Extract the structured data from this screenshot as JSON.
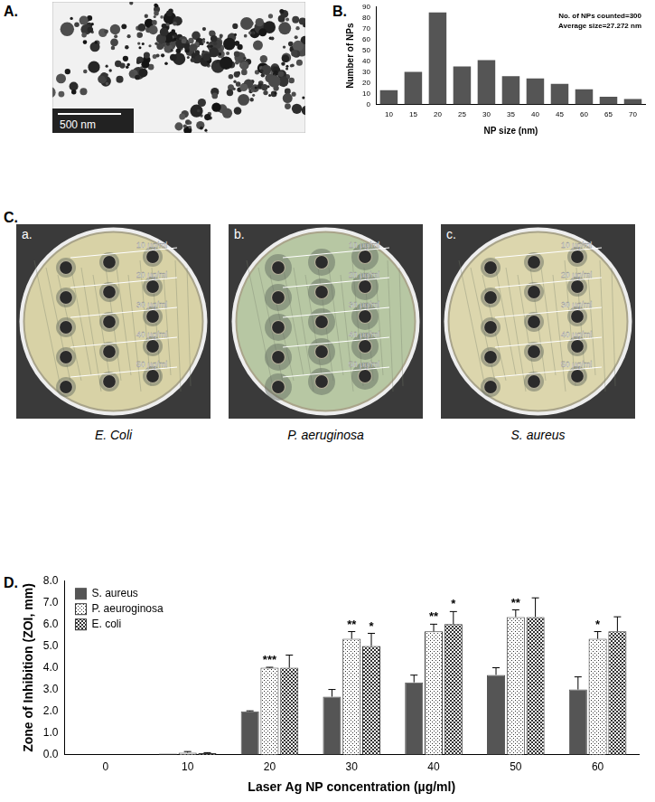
{
  "figure": {
    "panel_labels": [
      "A.",
      "B.",
      "C.",
      "D."
    ]
  },
  "image": {
    "scale_bar": "500 nm"
  },
  "plates": [
    {
      "label": "a.",
      "organism": "E. Coli",
      "concentrations": [
        "10 µg/ml",
        "20 µg/ml",
        "30 µg/ml",
        "40 µg/ml",
        "50 µg/ml"
      ]
    },
    {
      "label": "b.",
      "organism": "P. aeruginosa",
      "concentrations": [
        "10 µg/ml",
        "20 µg/ml",
        "30 µg/ml",
        "40 µg/ml",
        "50 µg/ml"
      ]
    },
    {
      "label": "c.",
      "organism": "S. aureus",
      "concentrations": [
        "10 µg/ml",
        "20 µg/ml",
        "30 µg/ml",
        "40 µg/ml",
        "50 µg/ml"
      ]
    }
  ],
  "chart_data": [
    {
      "type": "bar",
      "categories": [
        "10",
        "15",
        "20",
        "25",
        "30",
        "35",
        "40",
        "45",
        "60",
        "65",
        "70"
      ],
      "values": [
        13,
        30,
        85,
        35,
        41,
        26,
        24,
        19,
        14,
        7,
        5
      ],
      "color": "#555555",
      "x_label": "NP size (nm)",
      "y_label": "Number of NPs",
      "ylim": [
        0,
        90
      ],
      "yticks": [
        0,
        10,
        20,
        30,
        40,
        50,
        60,
        70,
        80,
        90
      ],
      "grid": false,
      "annotations": [
        "No. of NPs counted=300",
        "Average size=27.272 nm"
      ]
    },
    {
      "type": "bar",
      "categories": [
        "0",
        "10",
        "20",
        "30",
        "40",
        "50",
        "60"
      ],
      "series": [
        {
          "name": "S. aureus",
          "color": "#555555",
          "values": [
            0,
            0.05,
            2.0,
            2.67,
            3.33,
            3.67,
            3.0
          ],
          "errors": [
            0,
            0,
            0.02,
            0.33,
            0.33,
            0.33,
            0.58
          ]
        },
        {
          "name": "P. aeuroginosa",
          "color": "#333333",
          "values": [
            0,
            0.1,
            4.0,
            5.33,
            5.67,
            6.33,
            5.33
          ],
          "errors": [
            0,
            0.05,
            0.02,
            0.33,
            0.33,
            0.33,
            0.33
          ]
        },
        {
          "name": "E. coli",
          "color": "#333333",
          "values": [
            0,
            0.07,
            4.0,
            5.0,
            6.0,
            6.33,
            5.67
          ],
          "errors": [
            0,
            0.03,
            0.58,
            0.58,
            0.58,
            0.88,
            0.67
          ]
        }
      ],
      "x_label": "Laser Ag NP concentration (µg/ml)",
      "y_label": "Zone of Inhibition (ZOI, mm)",
      "ylim": [
        0,
        8
      ],
      "yticks": [
        {
          "value": 0,
          "label": "0.0"
        },
        {
          "value": 1,
          "label": "1.0"
        },
        {
          "value": 2,
          "label": "2.0"
        },
        {
          "value": 3,
          "label": "3.0"
        },
        {
          "value": 4,
          "label": "4.0"
        },
        {
          "value": 5,
          "label": "5.0"
        },
        {
          "value": 6,
          "label": "6.0"
        },
        {
          "value": 7,
          "label": "7.0"
        },
        {
          "value": 8,
          "label": "8.0"
        }
      ],
      "grid": false,
      "legend": "upper left",
      "annotations": [
        {
          "category": "20",
          "series": "P. aeuroginosa",
          "text": "***"
        },
        {
          "category": "30",
          "series": "P. aeuroginosa",
          "text": "**"
        },
        {
          "category": "30",
          "series": "E. coli",
          "text": "*"
        },
        {
          "category": "40",
          "series": "P. aeuroginosa",
          "text": "**"
        },
        {
          "category": "40",
          "series": "E. coli",
          "text": "*"
        },
        {
          "category": "50",
          "series": "P. aeuroginosa",
          "text": "**"
        },
        {
          "category": "60",
          "series": "P. aeuroginosa",
          "text": "*"
        }
      ]
    }
  ]
}
